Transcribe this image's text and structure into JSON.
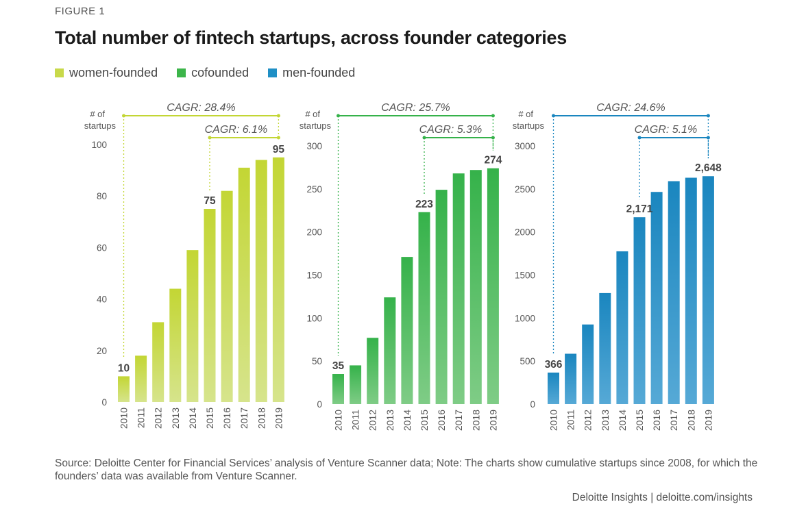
{
  "figure_label": "FIGURE 1",
  "title": "Total number of fintech startups, across founder categories",
  "legend": [
    {
      "label": "women-founded",
      "color": "#c8d94a"
    },
    {
      "label": "cofounded",
      "color": "#3cb54a"
    },
    {
      "label": "men-founded",
      "color": "#1f8fc5"
    }
  ],
  "source_note": "Source: Deloitte Center for Financial Services’ analysis of Venture Scanner data; Note: The charts show cumulative startups since 2008, for which the founders’ data was available from Venture Scanner.",
  "credit": "Deloitte Insights | deloitte.com/insights",
  "chart_data": [
    {
      "type": "bar",
      "name": "women-founded",
      "categories": [
        "2010",
        "2011",
        "2012",
        "2013",
        "2014",
        "2015",
        "2016",
        "2017",
        "2018",
        "2019"
      ],
      "values": [
        10,
        18,
        31,
        44,
        59,
        75,
        82,
        91,
        94,
        95
      ],
      "ylabel": "# of startups",
      "ylim": [
        0,
        100
      ],
      "yticks": [
        0,
        20,
        40,
        60,
        80,
        100
      ],
      "data_labels": [
        {
          "index": 0,
          "text": "10"
        },
        {
          "index": 5,
          "text": "75"
        },
        {
          "index": 9,
          "text": "95"
        }
      ],
      "annotations": [
        {
          "text": "CAGR: 28.4%",
          "from": "2010",
          "to": "2019"
        },
        {
          "text": "CAGR: 6.1%",
          "from": "2015",
          "to": "2019"
        }
      ],
      "color_top": "#c3d634",
      "color_bottom": "#d6e48c"
    },
    {
      "type": "bar",
      "name": "cofounded",
      "categories": [
        "2010",
        "2011",
        "2012",
        "2013",
        "2014",
        "2015",
        "2016",
        "2017",
        "2018",
        "2019"
      ],
      "values": [
        35,
        45,
        77,
        124,
        171,
        223,
        249,
        268,
        272,
        274
      ],
      "ylabel": "# of startups",
      "ylim": [
        0,
        300
      ],
      "yticks": [
        0,
        50,
        100,
        150,
        200,
        250,
        300
      ],
      "data_labels": [
        {
          "index": 0,
          "text": "35"
        },
        {
          "index": 5,
          "text": "223"
        },
        {
          "index": 9,
          "text": "274"
        }
      ],
      "annotations": [
        {
          "text": "CAGR: 25.7%",
          "from": "2010",
          "to": "2019"
        },
        {
          "text": "CAGR: 5.3%",
          "from": "2015",
          "to": "2019"
        }
      ],
      "color_top": "#35b24a",
      "color_bottom": "#7fcc86"
    },
    {
      "type": "bar",
      "name": "men-founded",
      "categories": [
        "2010",
        "2011",
        "2012",
        "2013",
        "2014",
        "2015",
        "2016",
        "2017",
        "2018",
        "2019"
      ],
      "values": [
        366,
        585,
        925,
        1290,
        1775,
        2171,
        2465,
        2590,
        2630,
        2648
      ],
      "ylabel": "# of startups",
      "ylim": [
        0,
        3000
      ],
      "yticks": [
        0,
        500,
        1000,
        1500,
        2000,
        2500,
        3000
      ],
      "data_labels": [
        {
          "index": 0,
          "text": "366"
        },
        {
          "index": 5,
          "text": "2,171"
        },
        {
          "index": 9,
          "text": "2,648"
        }
      ],
      "annotations": [
        {
          "text": "CAGR: 24.6%",
          "from": "2010",
          "to": "2019"
        },
        {
          "text": "CAGR: 5.1%",
          "from": "2015",
          "to": "2019"
        }
      ],
      "color_top": "#1a86bf",
      "color_bottom": "#56a9d6"
    }
  ]
}
